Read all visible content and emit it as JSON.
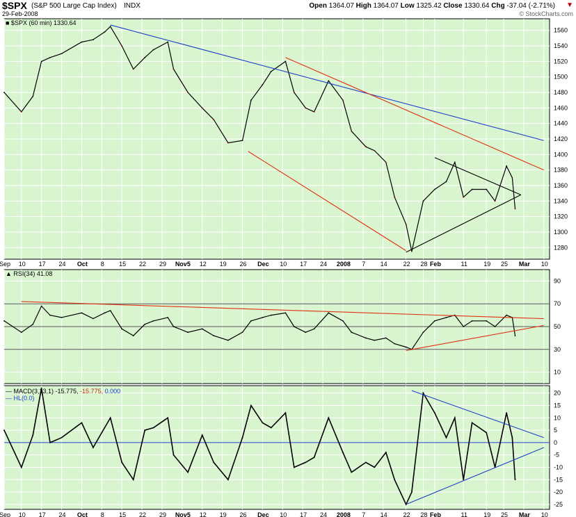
{
  "header": {
    "symbol": "$SPX",
    "name": "(S&P 500 Large Cap Index)",
    "exchange": "INDX",
    "date": "29-Feb-2008",
    "open_label": "Open",
    "open": "1364.07",
    "high_label": "High",
    "high": "1364.07",
    "low_label": "Low",
    "low": "1325.42",
    "close_label": "Close",
    "close": "1330.64",
    "chg_label": "Chg",
    "chg": "-37.04 (-2.71%)",
    "watermark": "© StockCharts.com"
  },
  "panels": {
    "price_legend": "$SPX (60 min) 1330.64",
    "rsi_legend": "RSI(34) 41.08",
    "macd_legend_parts": [
      "MACD(3,13,1)",
      "-15.775",
      "-15.775",
      "0.000"
    ],
    "hl_legend": "HL(0.0)"
  },
  "colors": {
    "background": "#d9f5d0",
    "grid": "#ffffff",
    "price": "#000000",
    "price_down_tick": "#8b0000",
    "blue_line": "#1f3fc8",
    "red_line": "#e03010",
    "macd_signal": "#c03010",
    "macd_hist": "#1f3fc8"
  },
  "chart_data": [
    {
      "type": "line",
      "title": "$SPX (60 min) 1330.64",
      "x_ticks": [
        "Sep",
        "10",
        "17",
        "24",
        "Oct",
        "8",
        "15",
        "22",
        "29",
        "Nov5",
        "12",
        "19",
        "26",
        "Dec",
        "10",
        "17",
        "24",
        "2008",
        "7",
        "14",
        "22",
        "28",
        "Feb",
        "11",
        "19",
        "25",
        "Mar",
        "10"
      ],
      "y_ticks": [
        1280,
        1300,
        1320,
        1340,
        1360,
        1380,
        1400,
        1420,
        1440,
        1460,
        1480,
        1500,
        1520,
        1540,
        1560
      ],
      "ylim": [
        1265,
        1575
      ],
      "series": [
        {
          "name": "$SPX (60 min)",
          "x": [
            "Sep 4",
            "Sep 10",
            "Sep 14",
            "Sep 17",
            "Sep 20",
            "Sep 24",
            "Oct 1",
            "Oct 5",
            "Oct 9",
            "Oct 11",
            "Oct 15",
            "Oct 19",
            "Oct 23",
            "Oct 26",
            "Oct 31",
            "Nov 2",
            "Nov 7",
            "Nov 12",
            "Nov 16",
            "Nov 21",
            "Nov 26",
            "Nov 29",
            "Dec 3",
            "Dec 6",
            "Dec 11",
            "Dec 14",
            "Dec 18",
            "Dec 21",
            "Dec 26",
            "Dec 31",
            "Jan 3",
            "Jan 8",
            "Jan 11",
            "Jan 15",
            "Jan 18",
            "Jan 22",
            "Jan 24",
            "Jan 28",
            "Feb 1",
            "Feb 5",
            "Feb 8",
            "Feb 11",
            "Feb 14",
            "Feb 19",
            "Feb 22",
            "Feb 26",
            "Feb 28",
            "Feb 29"
          ],
          "values": [
            1480,
            1455,
            1475,
            1520,
            1525,
            1530,
            1545,
            1548,
            1558,
            1565,
            1540,
            1510,
            1525,
            1535,
            1545,
            1510,
            1480,
            1460,
            1445,
            1415,
            1418,
            1470,
            1490,
            1507,
            1520,
            1480,
            1460,
            1455,
            1495,
            1470,
            1430,
            1410,
            1405,
            1390,
            1345,
            1310,
            1275,
            1340,
            1355,
            1365,
            1390,
            1345,
            1355,
            1355,
            1340,
            1385,
            1370,
            1330
          ]
        }
      ],
      "trendlines": [
        {
          "color": "blue",
          "from": [
            "Oct 11",
            1567
          ],
          "to": [
            "Mar 10",
            1418
          ]
        },
        {
          "color": "red",
          "from": [
            "Dec 11",
            1525
          ],
          "to": [
            "Mar 10",
            1380
          ]
        },
        {
          "color": "red",
          "from": [
            "Nov 28",
            1404
          ],
          "to": [
            "Jan 22",
            1276
          ]
        },
        {
          "color": "black",
          "from": [
            "Feb 1",
            1396
          ],
          "to": [
            "Mar 2",
            1348
          ]
        },
        {
          "color": "black",
          "from": [
            "Jan 22",
            1274
          ],
          "to": [
            "Mar 2",
            1348
          ]
        }
      ]
    },
    {
      "type": "line",
      "title": "RSI(34) 41.08",
      "y_ticks": [
        10,
        30,
        50,
        70,
        90
      ],
      "ylim": [
        0,
        100
      ],
      "reference_lines": [
        30,
        50,
        70
      ],
      "series": [
        {
          "name": "RSI(34)",
          "x": [
            "Sep 4",
            "Sep 10",
            "Sep 14",
            "Sep 17",
            "Sep 20",
            "Sep 24",
            "Oct 1",
            "Oct 5",
            "Oct 9",
            "Oct 11",
            "Oct 15",
            "Oct 19",
            "Oct 23",
            "Oct 26",
            "Oct 31",
            "Nov 2",
            "Nov 7",
            "Nov 12",
            "Nov 16",
            "Nov 21",
            "Nov 26",
            "Nov 29",
            "Dec 3",
            "Dec 6",
            "Dec 11",
            "Dec 14",
            "Dec 18",
            "Dec 21",
            "Dec 26",
            "Dec 31",
            "Jan 3",
            "Jan 8",
            "Jan 11",
            "Jan 15",
            "Jan 18",
            "Jan 22",
            "Jan 24",
            "Jan 28",
            "Feb 1",
            "Feb 5",
            "Feb 8",
            "Feb 11",
            "Feb 14",
            "Feb 19",
            "Feb 22",
            "Feb 26",
            "Feb 28",
            "Feb 29"
          ],
          "values": [
            55,
            45,
            52,
            68,
            60,
            58,
            62,
            57,
            62,
            64,
            48,
            42,
            52,
            55,
            58,
            50,
            45,
            48,
            42,
            38,
            45,
            55,
            58,
            60,
            62,
            50,
            45,
            48,
            62,
            55,
            45,
            40,
            38,
            40,
            35,
            32,
            30,
            45,
            55,
            58,
            60,
            50,
            55,
            55,
            50,
            60,
            58,
            42
          ]
        }
      ],
      "trendlines": [
        {
          "color": "red",
          "from": [
            "Sep 10",
            72
          ],
          "to": [
            "Mar 10",
            57
          ]
        },
        {
          "color": "red",
          "from": [
            "Jan 22",
            29
          ],
          "to": [
            "Mar 10",
            51
          ]
        }
      ]
    },
    {
      "type": "line",
      "title": "MACD(3,13,1) -15.775, -15.775, 0.000",
      "y_ticks": [
        -25,
        -20,
        -15,
        -10,
        -5,
        0,
        5,
        10,
        15,
        20
      ],
      "ylim": [
        -27,
        23
      ],
      "reference_lines": [
        0
      ],
      "series": [
        {
          "name": "MACD(3,13,1)",
          "x": [
            "Sep 4",
            "Sep 10",
            "Sep 14",
            "Sep 17",
            "Sep 20",
            "Sep 24",
            "Oct 1",
            "Oct 5",
            "Oct 9",
            "Oct 11",
            "Oct 15",
            "Oct 19",
            "Oct 23",
            "Oct 26",
            "Oct 31",
            "Nov 2",
            "Nov 7",
            "Nov 12",
            "Nov 16",
            "Nov 21",
            "Nov 26",
            "Nov 29",
            "Dec 3",
            "Dec 6",
            "Dec 11",
            "Dec 14",
            "Dec 18",
            "Dec 21",
            "Dec 26",
            "Dec 31",
            "Jan 3",
            "Jan 8",
            "Jan 11",
            "Jan 15",
            "Jan 18",
            "Jan 22",
            "Jan 24",
            "Jan 28",
            "Feb 1",
            "Feb 5",
            "Feb 8",
            "Feb 11",
            "Feb 14",
            "Feb 19",
            "Feb 22",
            "Feb 26",
            "Feb 28",
            "Feb 29"
          ],
          "values": [
            5,
            -10,
            3,
            22,
            0,
            2,
            8,
            -2,
            6,
            10,
            -8,
            -15,
            5,
            6,
            10,
            -5,
            -12,
            3,
            -8,
            -15,
            2,
            15,
            8,
            6,
            12,
            -10,
            -8,
            -6,
            10,
            -4,
            -12,
            -8,
            -10,
            -4,
            -15,
            -25,
            -20,
            20,
            12,
            2,
            10,
            -15,
            8,
            4,
            -10,
            12,
            2,
            -15
          ]
        }
      ],
      "trendlines": [
        {
          "color": "blue",
          "from": [
            "Jan 24",
            21
          ],
          "to": [
            "Mar 10",
            2
          ]
        },
        {
          "color": "blue",
          "from": [
            "Jan 22",
            -25
          ],
          "to": [
            "Mar 10",
            -2
          ]
        }
      ]
    }
  ]
}
